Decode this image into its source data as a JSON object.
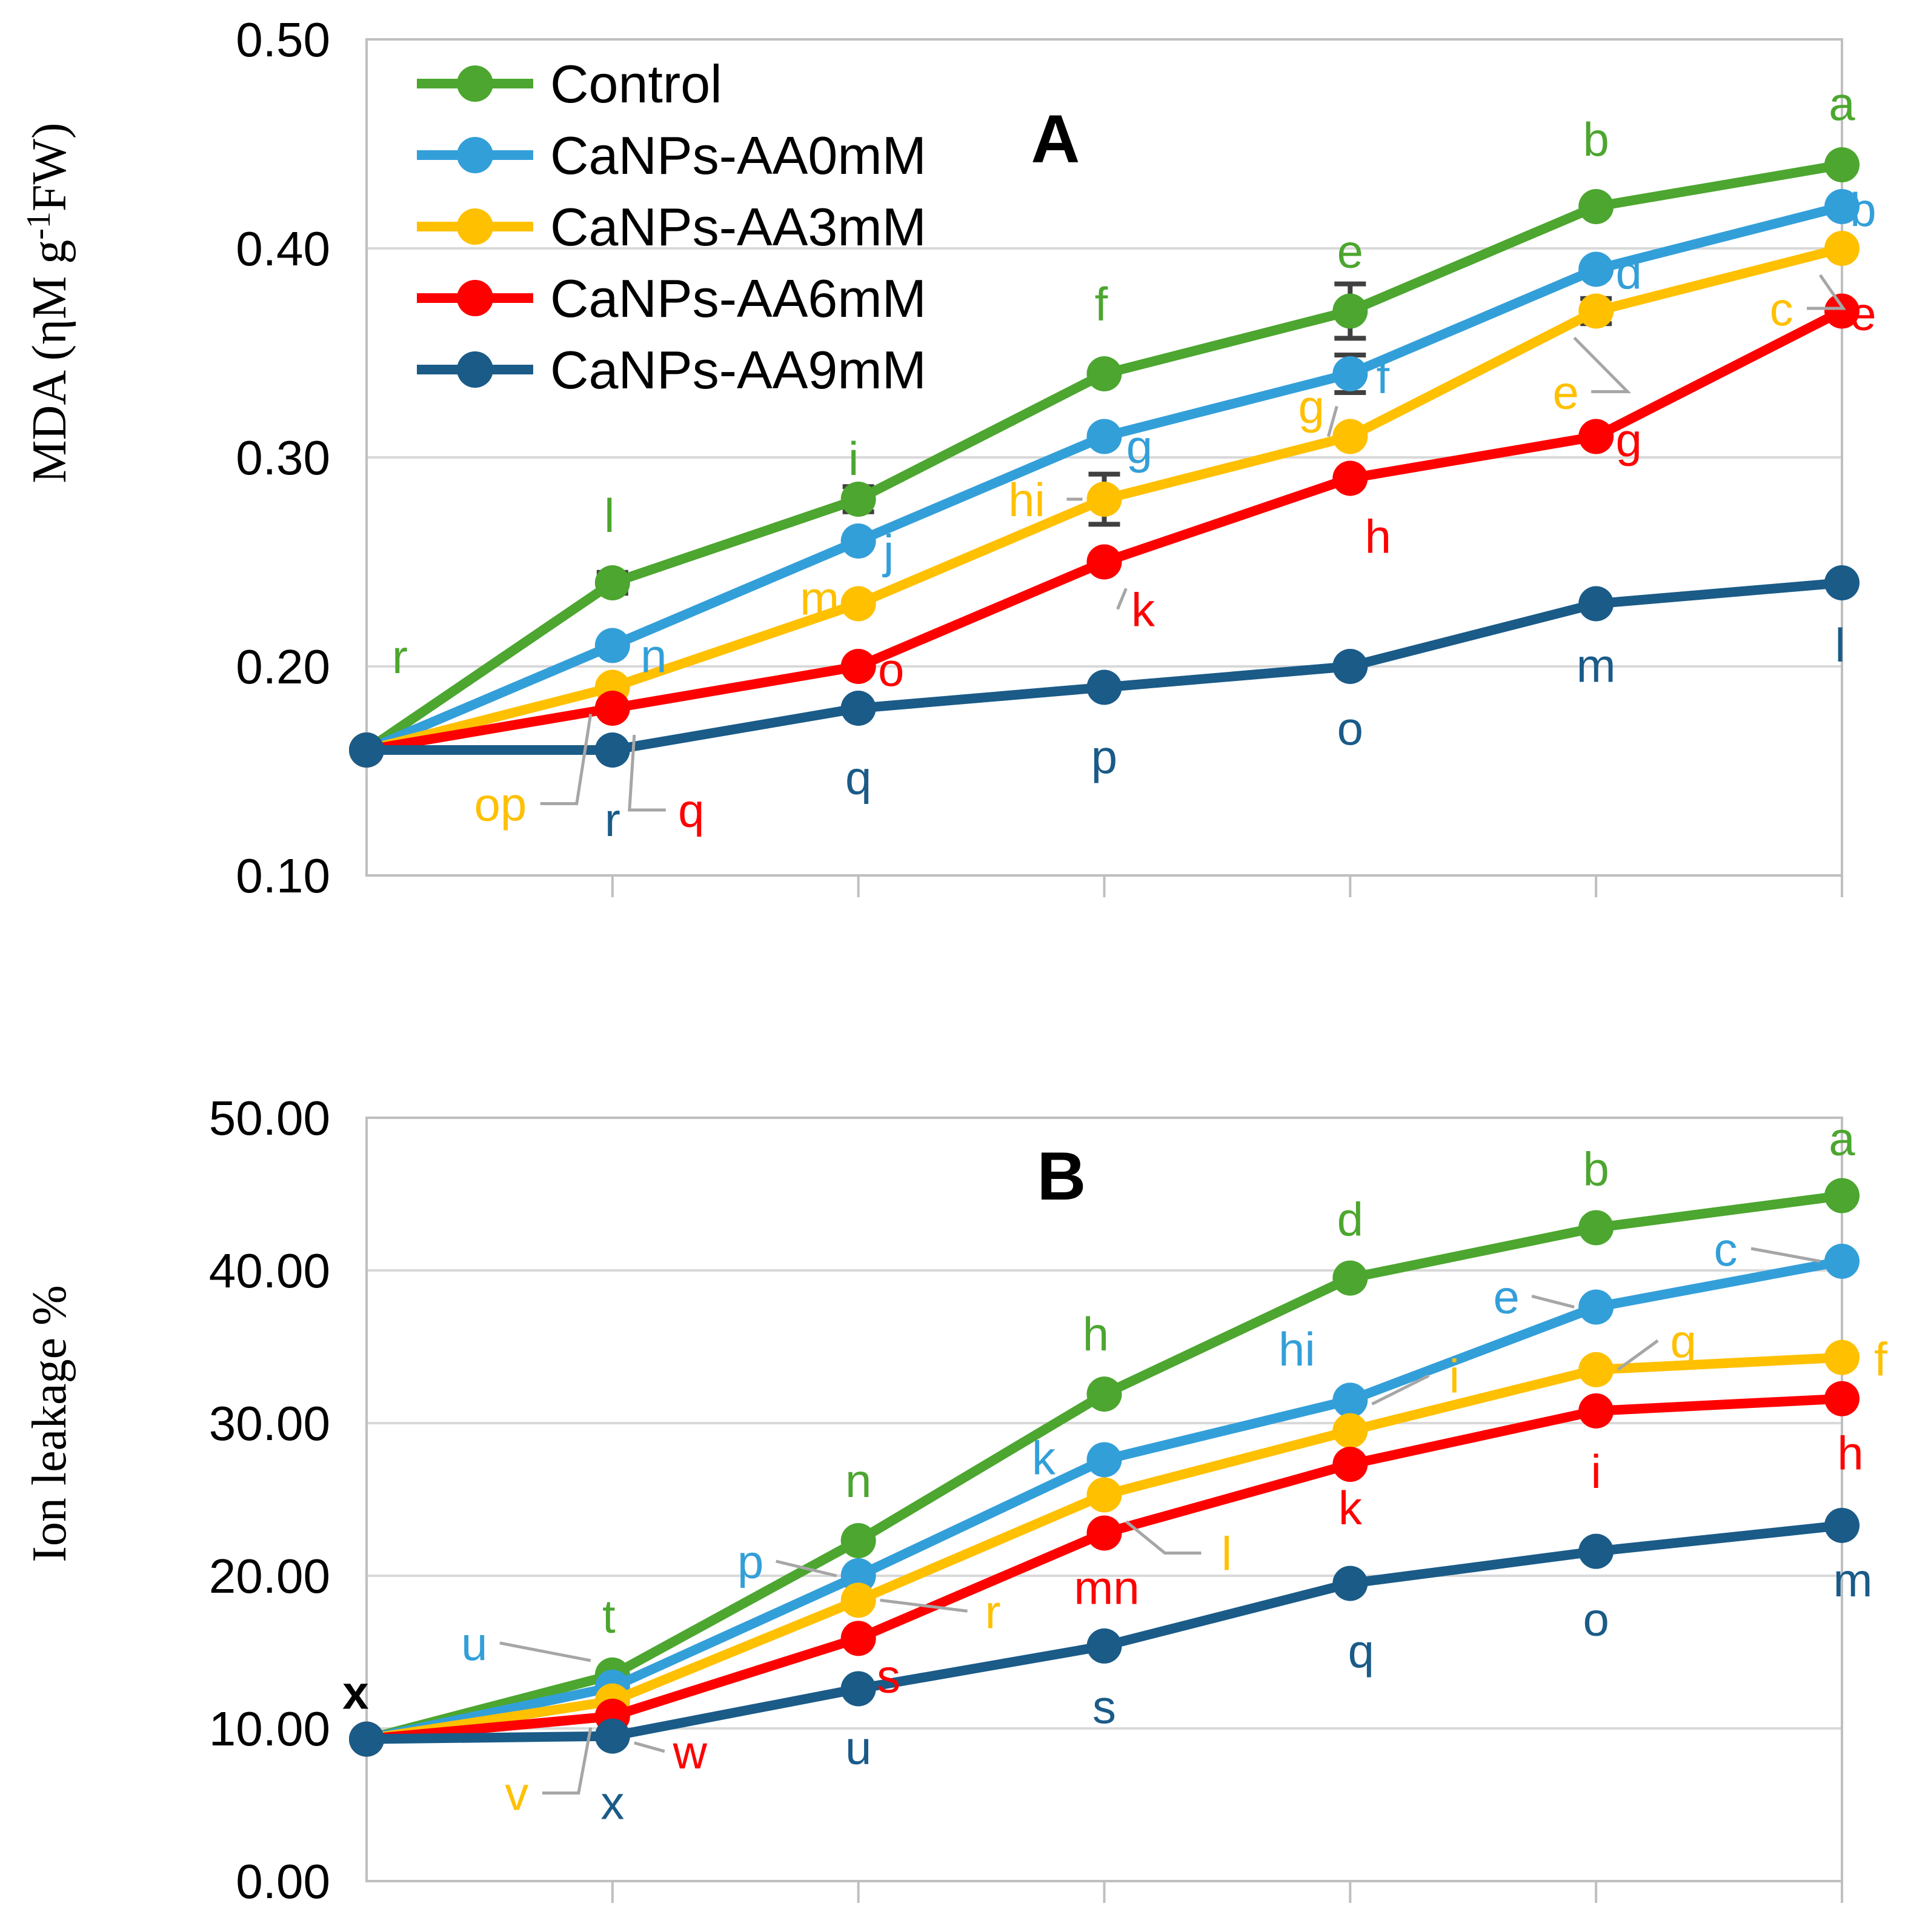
{
  "figure": {
    "background": "#ffffff"
  },
  "colors": {
    "gridline": "#d9d9d9",
    "axis_frame": "#bfbfbf",
    "leader_line": "#a6a6a6",
    "error_bar": "#404040",
    "panel_label": "#000000"
  },
  "chart_data": [
    {
      "type": "line",
      "panel_label": "A",
      "ylabel": {
        "prefix": "MDA (ηM g",
        "sup": "-1",
        "suffix": "FW)"
      },
      "ylim": [
        0.1,
        0.5
      ],
      "y_ticks": [
        {
          "v": 0.5,
          "label": "0.50"
        },
        {
          "v": 0.4,
          "label": "0.40"
        },
        {
          "v": 0.3,
          "label": "0.30"
        },
        {
          "v": 0.2,
          "label": "0.20"
        },
        {
          "v": 0.1,
          "label": "0.10"
        }
      ],
      "x_points": 7,
      "x_tick_labels": [],
      "grid": true,
      "legend_position": "top-left-inside",
      "show_legend": true,
      "series": [
        {
          "name": "Control",
          "color": "#4ca62f",
          "values": [
            0.16,
            0.24,
            0.28,
            0.34,
            0.37,
            0.42,
            0.44
          ],
          "errors": [
            null,
            0.005,
            0.006,
            null,
            0.013,
            null,
            null
          ],
          "letters": [
            {
              "t": "r",
              "dx": 55,
              "dy": -155
            },
            {
              "t": "l",
              "dx": -5,
              "dy": -112
            },
            {
              "t": "i",
              "dx": -8,
              "dy": -68
            },
            {
              "t": "f",
              "dx": -5,
              "dy": -116
            },
            {
              "t": "e",
              "dx": 0,
              "dy": -100
            },
            {
              "t": "b",
              "dx": 0,
              "dy": -112
            },
            {
              "t": "a",
              "dx": 0,
              "dy": -102
            }
          ]
        },
        {
          "name": "CaNPs-AA0mM",
          "color": "#339fd9",
          "values": [
            0.16,
            0.21,
            0.26,
            0.31,
            0.34,
            0.39,
            0.42
          ],
          "errors": [
            null,
            null,
            null,
            null,
            0.009,
            null,
            null
          ],
          "letters": [
            null,
            {
              "t": "n",
              "dx": 68,
              "dy": 16
            },
            {
              "t": "j",
              "dx": 50,
              "dy": 16
            },
            {
              "t": "g",
              "dx": 58,
              "dy": 16
            },
            {
              "t": "f",
              "dx": 54,
              "dy": 4
            },
            {
              "t": "d",
              "dx": 54,
              "dy": 4
            },
            {
              "t": "b",
              "dx": 35,
              "dy": 4
            }
          ]
        },
        {
          "name": "CaNPs-AA3mM",
          "color": "#ffc000",
          "values": [
            0.16,
            0.19,
            0.23,
            0.28,
            0.31,
            0.37,
            0.4
          ],
          "errors": [
            null,
            null,
            null,
            0.012,
            null,
            0.006,
            null
          ],
          "letters": [
            null,
            {
              "t": "op",
              "dx": -185,
              "dy": 192,
              "lead": true
            },
            {
              "t": "m",
              "dx": -64,
              "dy": -10
            },
            {
              "t": "hi",
              "dx": -128,
              "dy": 0,
              "lead": true
            },
            {
              "t": "g",
              "dx": -64,
              "dy": -50,
              "lead": true
            },
            {
              "t": "e",
              "dx": -50,
              "dy": 133,
              "lead": true
            },
            {
              "t": "c",
              "dx": -100,
              "dy": 99,
              "lead": true
            }
          ]
        },
        {
          "name": "CaNPs-AA6mM",
          "color": "#fe0000",
          "values": [
            0.16,
            0.18,
            0.2,
            0.25,
            0.29,
            0.31,
            0.37
          ],
          "errors": [
            null,
            null,
            null,
            null,
            null,
            null,
            null
          ],
          "letters": [
            null,
            {
              "t": "q",
              "dx": 130,
              "dy": 168,
              "lead": true
            },
            {
              "t": "o",
              "dx": 54,
              "dy": 4
            },
            {
              "t": "k",
              "dx": 64,
              "dy": 78,
              "lead": true
            },
            {
              "t": "h",
              "dx": 46,
              "dy": 95
            },
            {
              "t": "g",
              "dx": 54,
              "dy": 5
            },
            {
              "t": "e",
              "dx": 35,
              "dy": 3
            }
          ]
        },
        {
          "name": "CaNPs-AA9mM",
          "color": "#1a5b88",
          "values": [
            0.16,
            0.16,
            0.18,
            0.19,
            0.2,
            0.23,
            0.24
          ],
          "errors": [
            null,
            null,
            null,
            null,
            null,
            null,
            null
          ],
          "letters": [
            null,
            {
              "t": "r",
              "dx": 0,
              "dy": 114
            },
            {
              "t": "q",
              "dx": 0,
              "dy": 114
            },
            {
              "t": "p",
              "dx": 0,
              "dy": 114
            },
            {
              "t": "o",
              "dx": 0,
              "dy": 101
            },
            {
              "t": "m",
              "dx": 0,
              "dy": 101
            },
            {
              "t": "l",
              "dx": -3,
              "dy": 102
            }
          ]
        }
      ]
    },
    {
      "type": "line",
      "panel_label": "B",
      "ylabel": {
        "prefix": "Ion leakage %",
        "sup": "",
        "suffix": ""
      },
      "ylim": [
        0,
        50
      ],
      "y_ticks": [
        {
          "v": 50,
          "label": "50.00"
        },
        {
          "v": 40,
          "label": "40.00"
        },
        {
          "v": 30,
          "label": "30.00"
        },
        {
          "v": 20,
          "label": "20.00"
        },
        {
          "v": 10,
          "label": "10.00"
        },
        {
          "v": 0,
          "label": "0.00"
        }
      ],
      "x_points": 7,
      "x_tick_labels": [],
      "grid": true,
      "show_legend": false,
      "series": [
        {
          "name": "Control",
          "color": "#4ca62f",
          "values": [
            9.3,
            13.5,
            22.3,
            31.9,
            39.5,
            42.8,
            44.9
          ],
          "errors": [
            null,
            null,
            null,
            null,
            null,
            null,
            null
          ],
          "letters": [
            {
              "t": "x",
              "dx": -18,
              "dy": -78,
              "c": "#000000",
              "b": true
            },
            {
              "t": "t",
              "dx": -6,
              "dy": -98
            },
            {
              "t": "n",
              "dx": 0,
              "dy": -100
            },
            {
              "t": "h",
              "dx": -14,
              "dy": -100
            },
            {
              "t": "d",
              "dx": 0,
              "dy": -98
            },
            {
              "t": "b",
              "dx": 0,
              "dy": -98
            },
            {
              "t": "a",
              "dx": 0,
              "dy": -95
            }
          ]
        },
        {
          "name": "CaNPs-AA0mM",
          "color": "#339fd9",
          "values": [
            9.3,
            12.7,
            20.0,
            27.6,
            31.5,
            37.6,
            40.6
          ],
          "errors": [
            null,
            null,
            null,
            null,
            null,
            null,
            null
          ],
          "letters": [
            null,
            {
              "t": "u",
              "dx": -228,
              "dy": -73,
              "lead": true
            },
            {
              "t": "p",
              "dx": -178,
              "dy": -24,
              "lead": true
            },
            {
              "t": "k",
              "dx": -100,
              "dy": -4
            },
            {
              "t": "hi",
              "dx": -88,
              "dy": -85
            },
            {
              "t": "e",
              "dx": -148,
              "dy": -18,
              "lead": true
            },
            {
              "t": "c",
              "dx": -192,
              "dy": -21,
              "lead": true
            }
          ]
        },
        {
          "name": "CaNPs-AA3mM",
          "color": "#ffc000",
          "values": [
            9.3,
            11.8,
            18.4,
            25.3,
            29.5,
            33.5,
            34.3
          ],
          "errors": [
            null,
            null,
            null,
            null,
            null,
            null,
            null
          ],
          "letters": [
            null,
            {
              "t": "v",
              "dx": -158,
              "dy": 152,
              "lead": true
            },
            {
              "t": "r",
              "dx": 222,
              "dy": 18,
              "lead": true
            },
            {
              "t": "l",
              "dx": 202,
              "dy": 96,
              "lead": true
            },
            {
              "t": "i",
              "dx": 172,
              "dy": -91,
              "lead": true
            },
            {
              "t": "g",
              "dx": 144,
              "dy": -48,
              "lead": true
            },
            {
              "t": "f",
              "dx": 64,
              "dy": 2
            }
          ]
        },
        {
          "name": "CaNPs-AA6mM",
          "color": "#fe0000",
          "values": [
            9.3,
            10.8,
            15.9,
            22.8,
            27.3,
            30.8,
            31.6
          ],
          "errors": [
            null,
            null,
            null,
            null,
            null,
            null,
            null
          ],
          "letters": [
            null,
            {
              "t": "w",
              "dx": 128,
              "dy": 58,
              "lead": true
            },
            {
              "t": "s",
              "dx": 50,
              "dy": 61
            },
            {
              "t": "mn",
              "dx": 4,
              "dy": 89
            },
            {
              "t": "k",
              "dx": 0,
              "dy": 71
            },
            {
              "t": "i",
              "dx": 0,
              "dy": 99
            },
            {
              "t": "h",
              "dx": 14,
              "dy": 89
            }
          ]
        },
        {
          "name": "CaNPs-AA9mM",
          "color": "#1a5b88",
          "values": [
            9.3,
            9.5,
            12.6,
            15.4,
            19.5,
            21.6,
            23.3
          ],
          "errors": [
            null,
            null,
            null,
            null,
            null,
            null,
            null
          ],
          "letters": [
            null,
            {
              "t": "x",
              "dx": 0,
              "dy": 109
            },
            {
              "t": "u",
              "dx": 0,
              "dy": 96
            },
            {
              "t": "s",
              "dx": 0,
              "dy": 99
            },
            {
              "t": "q",
              "dx": 18,
              "dy": 111
            },
            {
              "t": "o",
              "dx": 0,
              "dy": 111
            },
            {
              "t": "m",
              "dx": 18,
              "dy": 89
            }
          ]
        }
      ]
    }
  ]
}
